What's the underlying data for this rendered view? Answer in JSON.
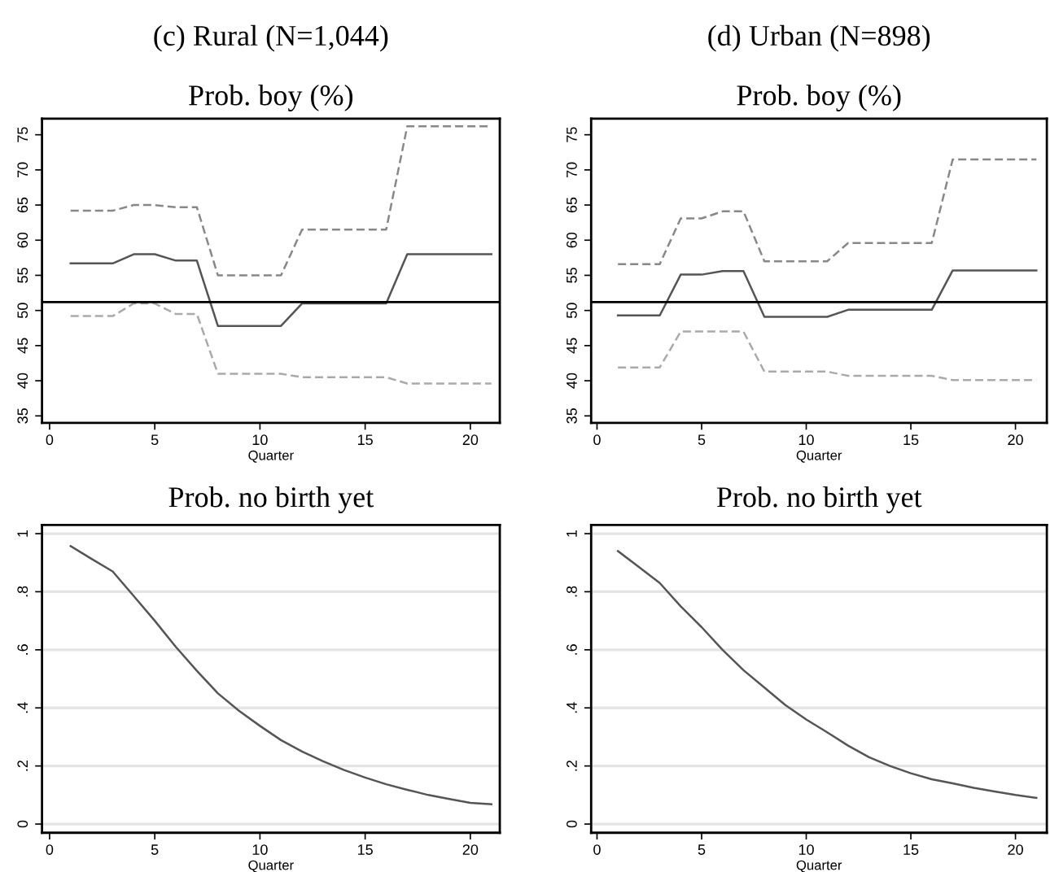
{
  "chart_data": [
    {
      "type": "line",
      "title": "(c) Rural (N=1,044)",
      "subtitle": "Prob. boy (%)",
      "xlabel": "Quarter",
      "x": [
        1,
        2,
        3,
        4,
        5,
        6,
        7,
        8,
        9,
        10,
        11,
        12,
        13,
        14,
        15,
        16,
        17,
        18,
        19,
        20,
        21
      ],
      "xlim": [
        -0.36,
        21.4
      ],
      "xticks": [
        0,
        5,
        10,
        15,
        20
      ],
      "ylim": [
        34,
        77.3
      ],
      "yticks": [
        35,
        40,
        45,
        50,
        55,
        60,
        65,
        70,
        75
      ],
      "grid": false,
      "legend": false,
      "series": [
        {
          "color": "#888888",
          "line_style": "dashed",
          "values": [
            64.2,
            64.2,
            64.2,
            65,
            65,
            64.7,
            64.7,
            55,
            55,
            55,
            55,
            61.5,
            61.5,
            61.5,
            61.5,
            61.5,
            76.2,
            76.2,
            76.2,
            76.2,
            76.2
          ]
        },
        {
          "color": "#555555",
          "line_style": "solid",
          "values": [
            56.7,
            56.7,
            56.7,
            58,
            58,
            57.1,
            57.1,
            47.8,
            47.8,
            47.8,
            47.8,
            51,
            51,
            51,
            51,
            51,
            58,
            58,
            58,
            58,
            58
          ]
        },
        {
          "color": "#aaaaaa",
          "line_style": "dashed",
          "values": [
            49.2,
            49.2,
            49.2,
            51,
            51,
            49.5,
            49.5,
            41,
            41,
            41,
            41,
            40.5,
            40.5,
            40.5,
            40.5,
            40.5,
            39.6,
            39.6,
            39.6,
            39.6,
            39.6
          ]
        }
      ],
      "ref_lines": [
        {
          "axis": "y",
          "value": 51.2,
          "color": "#000000"
        }
      ]
    },
    {
      "type": "line",
      "title": "(d) Urban (N=898)",
      "subtitle": "Prob. boy (%)",
      "xlabel": "Quarter",
      "x": [
        1,
        2,
        3,
        4,
        5,
        6,
        7,
        8,
        9,
        10,
        11,
        12,
        13,
        14,
        15,
        16,
        17,
        18,
        19,
        20,
        21
      ],
      "xlim": [
        -0.28,
        21.5
      ],
      "xticks": [
        0,
        5,
        10,
        15,
        20
      ],
      "ylim": [
        34,
        77.3
      ],
      "yticks": [
        35,
        40,
        45,
        50,
        55,
        60,
        65,
        70,
        75
      ],
      "grid": false,
      "legend": false,
      "series": [
        {
          "color": "#888888",
          "line_style": "dashed",
          "values": [
            56.6,
            56.6,
            56.6,
            63.1,
            63.1,
            64.1,
            64.1,
            57,
            57,
            57,
            57,
            59.6,
            59.6,
            59.6,
            59.6,
            59.6,
            71.5,
            71.5,
            71.5,
            71.5,
            71.5
          ]
        },
        {
          "color": "#555555",
          "line_style": "solid",
          "values": [
            49.3,
            49.3,
            49.3,
            55.1,
            55.1,
            55.6,
            55.6,
            49.1,
            49.1,
            49.1,
            49.1,
            50.1,
            50.1,
            50.1,
            50.1,
            50.1,
            55.7,
            55.7,
            55.7,
            55.7,
            55.7
          ]
        },
        {
          "color": "#aaaaaa",
          "line_style": "dashed",
          "values": [
            41.9,
            41.9,
            41.9,
            47,
            47,
            47,
            47,
            41.3,
            41.3,
            41.3,
            41.3,
            40.7,
            40.7,
            40.7,
            40.7,
            40.7,
            40.1,
            40.1,
            40.1,
            40.1,
            40.1
          ]
        }
      ],
      "ref_lines": [
        {
          "axis": "y",
          "value": 51.2,
          "color": "#000000"
        }
      ]
    },
    {
      "type": "line",
      "title": "Prob. no birth yet",
      "xlabel": "Quarter",
      "x": [
        1,
        2,
        3,
        4,
        5,
        6,
        7,
        8,
        9,
        10,
        11,
        12,
        13,
        14,
        15,
        16,
        17,
        18,
        19,
        20,
        21
      ],
      "xlim": [
        -0.36,
        21.4
      ],
      "xticks": [
        0,
        5,
        10,
        15,
        20
      ],
      "ylim": [
        -0.03,
        1.03
      ],
      "yticks": [
        {
          "value": 0,
          "label": "0"
        },
        {
          "value": 0.2,
          "label": ".2"
        },
        {
          "value": 0.4,
          "label": ".4"
        },
        {
          "value": 0.6,
          "label": ".6"
        },
        {
          "value": 0.8,
          "label": ".8"
        },
        {
          "value": 1,
          "label": "1"
        }
      ],
      "grid": "y",
      "legend": false,
      "series": [
        {
          "color": "#555555",
          "line_style": "solid",
          "values": [
            0.957,
            0.913,
            0.87,
            0.785,
            0.7,
            0.61,
            0.528,
            0.45,
            0.39,
            0.338,
            0.289,
            0.25,
            0.216,
            0.186,
            0.16,
            0.137,
            0.118,
            0.1,
            0.086,
            0.073,
            0.068
          ]
        }
      ]
    },
    {
      "type": "line",
      "title": "Prob. no birth yet",
      "xlabel": "Quarter",
      "x": [
        1,
        2,
        3,
        4,
        5,
        6,
        7,
        8,
        9,
        10,
        11,
        12,
        13,
        14,
        15,
        16,
        17,
        18,
        19,
        20,
        21
      ],
      "xlim": [
        -0.28,
        21.5
      ],
      "xticks": [
        0,
        5,
        10,
        15,
        20
      ],
      "ylim": [
        -0.03,
        1.03
      ],
      "yticks": [
        {
          "value": 0,
          "label": "0"
        },
        {
          "value": 0.2,
          "label": ".2"
        },
        {
          "value": 0.4,
          "label": ".4"
        },
        {
          "value": 0.6,
          "label": ".6"
        },
        {
          "value": 0.8,
          "label": ".8"
        },
        {
          "value": 1,
          "label": "1"
        }
      ],
      "grid": "y",
      "legend": false,
      "series": [
        {
          "color": "#555555",
          "line_style": "solid",
          "values": [
            0.94,
            0.885,
            0.83,
            0.75,
            0.678,
            0.6,
            0.53,
            0.47,
            0.41,
            0.36,
            0.316,
            0.27,
            0.23,
            0.2,
            0.175,
            0.154,
            0.14,
            0.125,
            0.112,
            0.1,
            0.09
          ]
        }
      ]
    }
  ]
}
